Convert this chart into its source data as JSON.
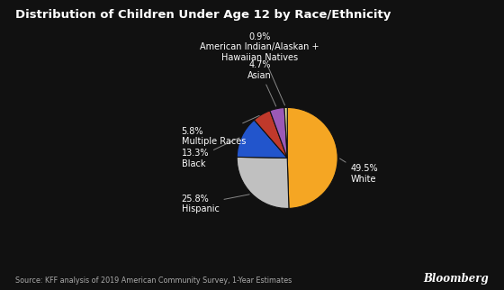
{
  "title": "Distribution of Children Under Age 12 by Race/Ethnicity",
  "values": [
    49.5,
    25.8,
    13.3,
    5.8,
    4.7,
    0.9
  ],
  "colors": [
    "#F5A623",
    "#C0C0C0",
    "#2255CC",
    "#C0392B",
    "#9B59B6",
    "#E8E8A0"
  ],
  "pct_labels": [
    "49.5%",
    "25.8%",
    "13.3%",
    "5.8%",
    "4.7%",
    "0.9%"
  ],
  "names": [
    "White",
    "Hispanic",
    "Black",
    "Multiple Races",
    "Asian",
    "American Indian/Alaskan +\nHawaiian Natives"
  ],
  "source_text": "Source: KFF analysis of 2019 American Community Survey, 1-Year Estimates",
  "background_color": "#111111",
  "text_color": "#ffffff",
  "label_color": "#cccccc"
}
